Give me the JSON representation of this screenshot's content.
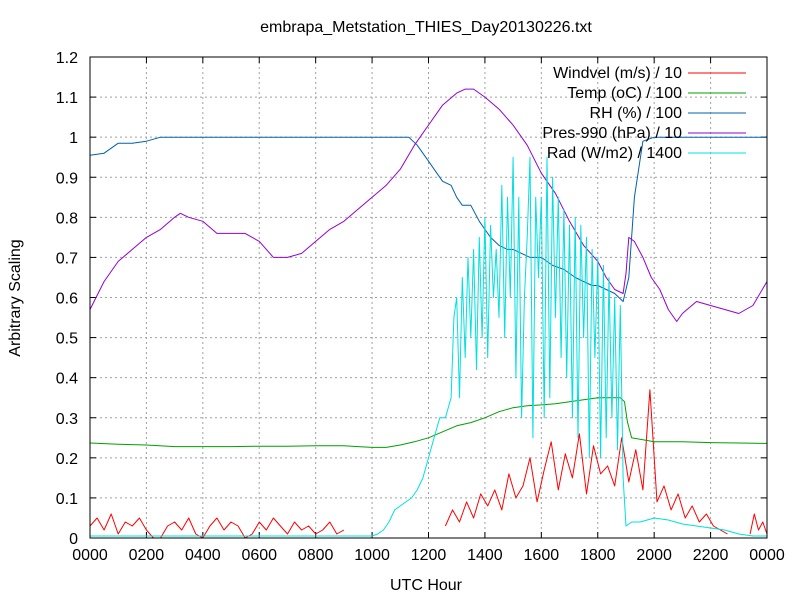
{
  "chart_data": {
    "type": "line",
    "title": "embrapa_Metstation_THIES_Day20130226.txt",
    "xlabel": "UTC Hour",
    "ylabel": "Arbitrary Scaling",
    "xlim": [
      0,
      24
    ],
    "ylim": [
      0,
      1.2
    ],
    "grid": true,
    "legend_position": "top-right",
    "x_ticks": [
      {
        "value": 0,
        "label": "0000"
      },
      {
        "value": 2,
        "label": "0200"
      },
      {
        "value": 4,
        "label": "0400"
      },
      {
        "value": 6,
        "label": "0600"
      },
      {
        "value": 8,
        "label": "0800"
      },
      {
        "value": 10,
        "label": "1000"
      },
      {
        "value": 12,
        "label": "1200"
      },
      {
        "value": 14,
        "label": "1400"
      },
      {
        "value": 16,
        "label": "1600"
      },
      {
        "value": 18,
        "label": "1800"
      },
      {
        "value": 20,
        "label": "2000"
      },
      {
        "value": 22,
        "label": "2200"
      },
      {
        "value": 24,
        "label": "0000"
      }
    ],
    "y_ticks": [
      {
        "value": 0,
        "label": "0"
      },
      {
        "value": 0.1,
        "label": "0.1"
      },
      {
        "value": 0.2,
        "label": "0.2"
      },
      {
        "value": 0.3,
        "label": "0.3"
      },
      {
        "value": 0.4,
        "label": "0.4"
      },
      {
        "value": 0.5,
        "label": "0.5"
      },
      {
        "value": 0.6,
        "label": "0.6"
      },
      {
        "value": 0.7,
        "label": "0.7"
      },
      {
        "value": 0.8,
        "label": "0.8"
      },
      {
        "value": 0.9,
        "label": "0.9"
      },
      {
        "value": 1,
        "label": "1"
      },
      {
        "value": 1.1,
        "label": "1.1"
      },
      {
        "value": 1.2,
        "label": "1.2"
      }
    ],
    "series": [
      {
        "name": "Windvel (m/s) / 10",
        "color": "#ff0000",
        "segments": [
          {
            "x": [
              0.0,
              0.25,
              0.5,
              0.75,
              1.0,
              1.25,
              1.5,
              1.75,
              2.0,
              2.25,
              2.5,
              2.75,
              3.0,
              3.25,
              3.5,
              3.75,
              4.0,
              4.25,
              4.5,
              4.75,
              5.0,
              5.25,
              5.5,
              5.75,
              6.0,
              6.25,
              6.5,
              6.75,
              7.0,
              7.25,
              7.5,
              7.75,
              8.0,
              8.25,
              8.5,
              8.75,
              9.0
            ],
            "y": [
              0.03,
              0.05,
              0.02,
              0.06,
              0.01,
              0.04,
              0.03,
              0.05,
              0.02,
              0.0,
              0.0,
              0.03,
              0.04,
              0.02,
              0.05,
              0.01,
              0.0,
              0.03,
              0.05,
              0.02,
              0.04,
              0.03,
              0.0,
              0.01,
              0.04,
              0.02,
              0.05,
              0.03,
              0.01,
              0.04,
              0.02,
              0.03,
              0.01,
              0.02,
              0.04,
              0.01,
              0.02
            ]
          },
          {
            "x": [
              12.6,
              12.85,
              13.1,
              13.35,
              13.6,
              13.85,
              14.1,
              14.35,
              14.6,
              14.85,
              15.1,
              15.35,
              15.6,
              15.85,
              16.1,
              16.35,
              16.6,
              16.85,
              17.1,
              17.35,
              17.6,
              17.85,
              18.1,
              18.35,
              18.6,
              18.85,
              19.1,
              19.35,
              19.6,
              19.85,
              20.1,
              20.35,
              20.6,
              20.85,
              21.1,
              21.35,
              21.6,
              21.85,
              22.1,
              22.35,
              22.6
            ],
            "y": [
              0.03,
              0.07,
              0.04,
              0.09,
              0.05,
              0.11,
              0.08,
              0.12,
              0.07,
              0.16,
              0.1,
              0.13,
              0.2,
              0.09,
              0.17,
              0.24,
              0.12,
              0.21,
              0.15,
              0.26,
              0.11,
              0.23,
              0.16,
              0.18,
              0.13,
              0.25,
              0.14,
              0.22,
              0.12,
              0.37,
              0.09,
              0.13,
              0.07,
              0.11,
              0.05,
              0.08,
              0.04,
              0.06,
              0.03,
              0.02,
              0.01
            ]
          },
          {
            "x": [
              23.4,
              23.55,
              23.7,
              23.85,
              24.0
            ],
            "y": [
              0.01,
              0.06,
              0.02,
              0.04,
              0.01
            ]
          }
        ]
      },
      {
        "name": "Temp (oC) / 100",
        "color": "#00a000",
        "segments": [
          {
            "x": [
              0,
              1,
              2,
              3,
              4,
              5,
              6,
              7,
              8,
              9,
              9.5,
              10,
              10.5,
              11,
              11.5,
              12,
              12.5,
              13,
              13.5,
              14,
              14.5,
              15,
              15.5,
              16,
              16.5,
              17,
              17.5,
              18,
              18.5,
              18.8,
              18.95,
              19.05,
              19.2,
              20,
              21,
              22,
              23,
              24
            ],
            "y": [
              0.237,
              0.234,
              0.232,
              0.228,
              0.228,
              0.228,
              0.229,
              0.229,
              0.23,
              0.23,
              0.228,
              0.226,
              0.226,
              0.232,
              0.24,
              0.25,
              0.265,
              0.28,
              0.288,
              0.3,
              0.315,
              0.325,
              0.33,
              0.332,
              0.335,
              0.34,
              0.345,
              0.35,
              0.35,
              0.35,
              0.34,
              0.29,
              0.25,
              0.24,
              0.24,
              0.238,
              0.237,
              0.236
            ]
          }
        ]
      },
      {
        "name": "RH (%) / 100",
        "color": "#0060ad",
        "segments": [
          {
            "x": [
              0,
              0.5,
              1.0,
              1.5,
              2.0,
              2.5,
              3,
              5,
              7,
              9,
              10,
              11,
              11.3,
              11.6,
              11.9,
              12.2,
              12.5,
              12.8,
              13.0,
              13.2,
              13.5,
              13.8,
              14.0,
              14.2,
              14.5,
              14.8,
              15.0,
              15.3,
              15.6,
              16.0,
              16.4,
              16.8,
              17.2,
              17.5,
              17.8,
              18.0,
              18.3,
              18.6,
              18.9,
              19.1,
              19.3,
              19.6,
              20,
              21,
              22,
              23,
              24
            ],
            "y": [
              0.955,
              0.96,
              0.985,
              0.985,
              0.99,
              1.0,
              1.0,
              1.0,
              1.0,
              1.0,
              1.0,
              1.0,
              1.0,
              0.98,
              0.95,
              0.92,
              0.89,
              0.88,
              0.85,
              0.83,
              0.83,
              0.79,
              0.77,
              0.75,
              0.73,
              0.72,
              0.72,
              0.71,
              0.7,
              0.7,
              0.68,
              0.67,
              0.65,
              0.64,
              0.63,
              0.63,
              0.62,
              0.61,
              0.59,
              0.65,
              0.85,
              0.99,
              1.0,
              1.0,
              1.0,
              1.0,
              1.0
            ]
          }
        ]
      },
      {
        "name": "Pres-990 (hPa) / 10",
        "color": "#9400d3",
        "segments": [
          {
            "x": [
              0,
              0.5,
              1.0,
              1.5,
              2.0,
              2.5,
              3.0,
              3.2,
              3.5,
              4.0,
              4.5,
              5.0,
              5.5,
              6.0,
              6.5,
              7.0,
              7.5,
              8.0,
              8.5,
              9.0,
              9.5,
              10.0,
              10.5,
              11.0,
              11.5,
              12.0,
              12.5,
              13.0,
              13.3,
              13.6,
              14.0,
              14.5,
              15.0,
              15.5,
              16.0,
              16.5,
              17.0,
              17.5,
              18.0,
              18.3,
              18.6,
              18.9,
              19.0,
              19.1,
              19.3,
              19.6,
              19.9,
              20.2,
              20.5,
              20.8,
              21.0,
              21.5,
              22.0,
              22.5,
              23.0,
              23.5,
              24.0
            ],
            "y": [
              0.57,
              0.64,
              0.69,
              0.72,
              0.75,
              0.77,
              0.8,
              0.81,
              0.8,
              0.79,
              0.76,
              0.76,
              0.76,
              0.74,
              0.7,
              0.7,
              0.71,
              0.74,
              0.77,
              0.79,
              0.82,
              0.85,
              0.88,
              0.92,
              0.98,
              1.03,
              1.08,
              1.11,
              1.12,
              1.12,
              1.1,
              1.07,
              1.03,
              0.98,
              0.91,
              0.86,
              0.79,
              0.73,
              0.69,
              0.65,
              0.62,
              0.61,
              0.66,
              0.75,
              0.74,
              0.7,
              0.65,
              0.62,
              0.57,
              0.54,
              0.56,
              0.59,
              0.58,
              0.57,
              0.56,
              0.58,
              0.64
            ]
          }
        ]
      },
      {
        "name": "Rad (W/m2) / 1400",
        "color": "#00e0e0",
        "segments": [
          {
            "x": [
              0,
              2,
              4,
              6,
              8,
              10,
              10.2,
              10.4,
              10.6,
              10.8,
              11.0,
              11.2,
              11.4,
              11.6,
              11.8,
              12.0,
              12.2,
              12.4,
              12.6,
              12.8,
              12.9,
              13.0,
              13.1,
              13.2,
              13.3,
              13.4,
              13.5,
              13.6,
              13.7,
              13.8,
              13.9,
              14.0,
              14.1,
              14.2,
              14.3,
              14.4,
              14.5,
              14.6,
              14.7,
              14.8,
              14.9,
              15.0,
              15.1,
              15.2,
              15.3,
              15.4,
              15.5,
              15.6,
              15.7,
              15.8,
              15.9,
              16.0,
              16.1,
              16.2,
              16.3,
              16.4,
              16.5,
              16.6,
              16.7,
              16.8,
              16.9,
              17.0,
              17.1,
              17.2,
              17.3,
              17.4,
              17.5,
              17.6,
              17.7,
              17.8,
              17.9,
              18.0,
              18.1,
              18.2,
              18.3,
              18.4,
              18.5,
              18.6,
              18.7,
              18.8,
              18.9,
              19.0,
              19.2,
              19.5,
              20.0,
              20.5,
              21.0,
              21.5,
              22.0,
              22.5,
              23.0,
              23.5,
              24.0
            ],
            "y": [
              0.005,
              0.005,
              0.005,
              0.005,
              0.005,
              0.005,
              0.01,
              0.02,
              0.04,
              0.07,
              0.08,
              0.09,
              0.1,
              0.12,
              0.15,
              0.2,
              0.25,
              0.3,
              0.3,
              0.35,
              0.55,
              0.6,
              0.35,
              0.65,
              0.45,
              0.7,
              0.5,
              0.72,
              0.42,
              0.75,
              0.5,
              0.8,
              0.45,
              0.78,
              0.6,
              0.72,
              0.55,
              0.88,
              0.5,
              0.85,
              0.6,
              0.95,
              0.4,
              0.85,
              0.3,
              0.6,
              0.75,
              0.95,
              0.25,
              0.85,
              0.65,
              0.85,
              0.3,
              0.95,
              0.35,
              0.9,
              0.55,
              0.85,
              0.45,
              0.82,
              0.4,
              0.78,
              0.3,
              0.8,
              0.25,
              0.78,
              0.5,
              0.75,
              0.2,
              0.72,
              0.45,
              0.7,
              0.2,
              0.68,
              0.25,
              0.65,
              0.3,
              0.6,
              0.22,
              0.58,
              0.15,
              0.03,
              0.04,
              0.04,
              0.05,
              0.045,
              0.035,
              0.03,
              0.025,
              0.02,
              0.01,
              0.005,
              0.005
            ]
          }
        ]
      }
    ]
  }
}
